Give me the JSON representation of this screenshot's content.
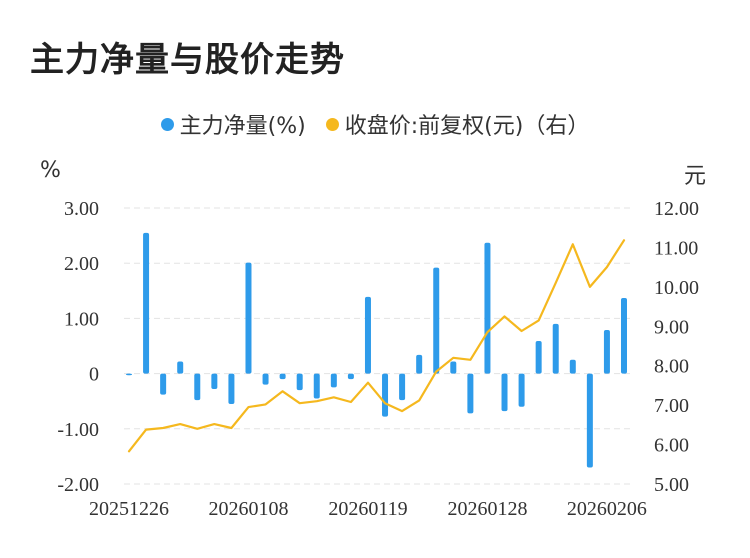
{
  "title": "主力净量与股价走势",
  "legend": {
    "bar_label": "主力净量(%)",
    "line_label": "收盘价:前复权(元)（右）"
  },
  "units": {
    "left": "%",
    "right": "元"
  },
  "colors": {
    "bar": "#2e9bea",
    "line": "#f5b81e",
    "grid": "#e3e3e3",
    "text": "#333333"
  },
  "chart_data": {
    "type": "bar+line",
    "x_tick_labels": [
      "20251226",
      "20260108",
      "20260119",
      "20260128",
      "20260206"
    ],
    "x_tick_indices": [
      0,
      7,
      14,
      21,
      28
    ],
    "left_axis": {
      "ticks": [
        "3.00",
        "2.00",
        "1.00",
        "0",
        "-1.00",
        "-2.00"
      ],
      "range": [
        -2,
        3
      ]
    },
    "right_axis": {
      "ticks": [
        "12.00",
        "11.00",
        "10.00",
        "9.00",
        "8.00",
        "7.00",
        "6.00",
        "5.00"
      ],
      "range": [
        5,
        12
      ]
    },
    "series": [
      {
        "name": "主力净量(%)",
        "type": "bar",
        "axis": "left",
        "values": [
          -0.03,
          2.55,
          -0.38,
          0.22,
          -0.48,
          -0.28,
          -0.55,
          2.01,
          -0.2,
          -0.1,
          -0.3,
          -0.45,
          -0.25,
          -0.1,
          1.39,
          -0.78,
          -0.48,
          0.34,
          1.92,
          0.22,
          -0.72,
          2.37,
          -0.68,
          -0.6,
          0.59,
          0.9,
          0.25,
          -1.7,
          0.79,
          1.37
        ]
      },
      {
        "name": "收盘价:前复权(元)（右）",
        "type": "line",
        "axis": "right",
        "values": [
          5.83,
          6.38,
          6.42,
          6.52,
          6.4,
          6.52,
          6.42,
          6.95,
          7.02,
          7.35,
          7.05,
          7.1,
          7.2,
          7.08,
          7.57,
          7.05,
          6.85,
          7.12,
          7.85,
          8.2,
          8.15,
          8.85,
          9.25,
          8.88,
          9.15,
          10.1,
          11.08,
          10.0,
          10.5,
          11.18
        ]
      }
    ]
  }
}
